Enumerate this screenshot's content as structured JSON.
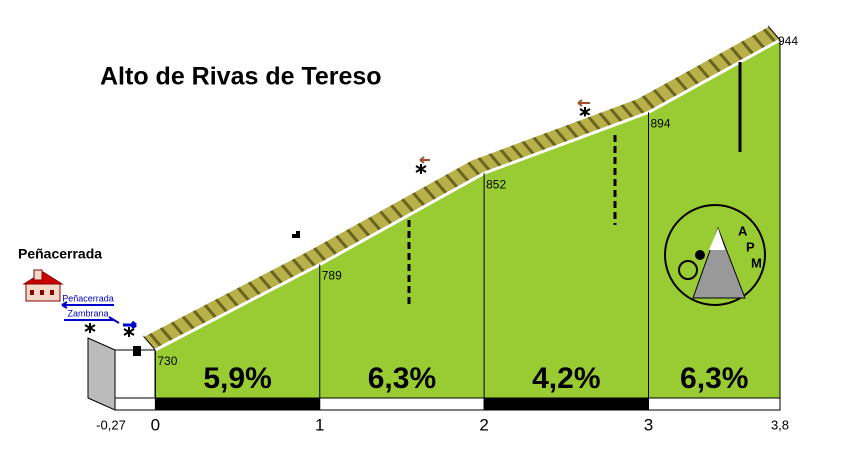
{
  "chart_data": {
    "type": "profile",
    "title": "Alto de Rivas de Tereso",
    "place": "Peñacerrada",
    "signs": [
      "Peñacerrada",
      "Zambrana"
    ],
    "logo_letters": [
      "A",
      "P",
      "M"
    ],
    "x": [
      0,
      1,
      2,
      3,
      3.8
    ],
    "values": [
      730,
      789,
      852,
      894,
      944
    ],
    "color": "#99cc33",
    "gradients": [
      {
        "value": 5.9,
        "label": "5,9%"
      },
      {
        "value": 6.3,
        "label": "6,3%"
      },
      {
        "value": 4.2,
        "label": "4,2%"
      },
      {
        "value": 6.3,
        "label": "6,3%"
      }
    ],
    "xlim": [
      -0.27,
      3.8
    ],
    "xticks": [
      {
        "value": -0.27,
        "label": "-0,27"
      },
      0,
      1,
      2,
      3,
      {
        "value": 3.8,
        "label": "3,8"
      }
    ]
  }
}
